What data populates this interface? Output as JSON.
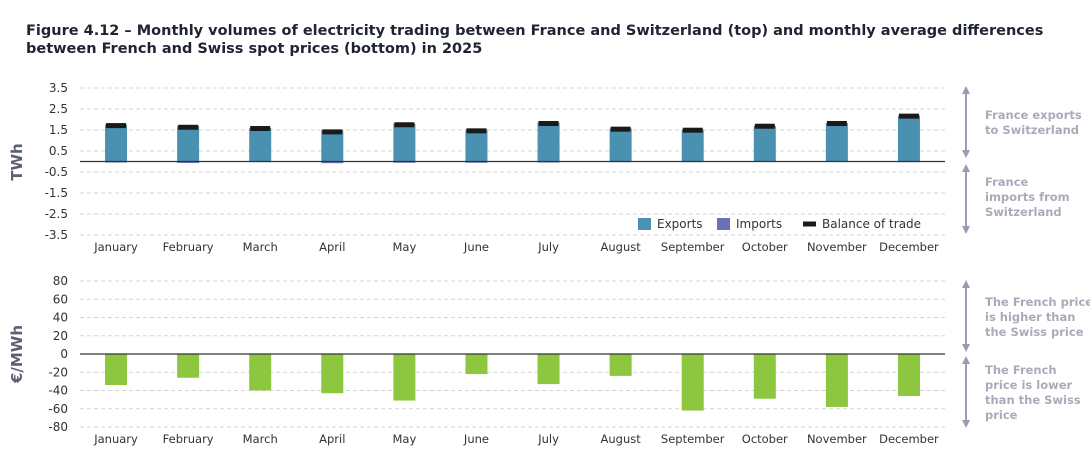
{
  "title": "Figure 4.12 – Monthly volumes of electricity trading between France and Switzerland (top) and monthly average differences between French and Swiss spot prices (bottom) in 2025",
  "chart_data": [
    {
      "type": "bar",
      "ylabel": "TWh",
      "ylim": [
        -3.5,
        3.5
      ],
      "yticks": [
        "3.5",
        "2.5",
        "1.5",
        "0.5",
        "-0.5",
        "-1.5",
        "-2.5",
        "-3.5"
      ],
      "grid": true,
      "legend_position": "bottom-right",
      "categories": [
        "January",
        "February",
        "March",
        "April",
        "May",
        "June",
        "July",
        "August",
        "September",
        "October",
        "November",
        "December"
      ],
      "series": [
        {
          "name": "Exports",
          "color": "#4a90b0",
          "values": [
            1.76,
            1.7,
            1.6,
            1.49,
            1.81,
            1.52,
            1.86,
            1.57,
            1.52,
            1.69,
            1.83,
            2.19
          ]
        },
        {
          "name": "Imports",
          "color": "#6b6fb5",
          "values": [
            -0.05,
            -0.07,
            -0.03,
            -0.08,
            -0.06,
            -0.06,
            -0.05,
            -0.03,
            -0.03,
            -0.01,
            -0.02,
            -0.03
          ]
        },
        {
          "name": "Balance of trade",
          "color": "#1a1a1a",
          "marker": "dash",
          "values": [
            1.71,
            1.63,
            1.57,
            1.41,
            1.75,
            1.46,
            1.81,
            1.54,
            1.49,
            1.68,
            1.81,
            2.16
          ]
        }
      ],
      "annotations": [
        "France exports to Switzerland",
        "France imports from Switzerland"
      ]
    },
    {
      "type": "bar",
      "ylabel": "€/MWh",
      "ylim": [
        -80,
        80
      ],
      "yticks": [
        "80",
        "60",
        "40",
        "20",
        "0",
        "-20",
        "-40",
        "-60",
        "-80"
      ],
      "grid": true,
      "categories": [
        "January",
        "February",
        "March",
        "April",
        "May",
        "June",
        "July",
        "August",
        "September",
        "October",
        "November",
        "December"
      ],
      "series": [
        {
          "color": "#8dc63f",
          "values": [
            -34,
            -26,
            -40,
            -43,
            -51,
            -22,
            -33,
            -24,
            -62,
            -49,
            -58,
            -46
          ]
        }
      ],
      "annotations": [
        "The French price is higher than the Swiss price",
        "The French price is lower than the Swiss price"
      ]
    }
  ]
}
